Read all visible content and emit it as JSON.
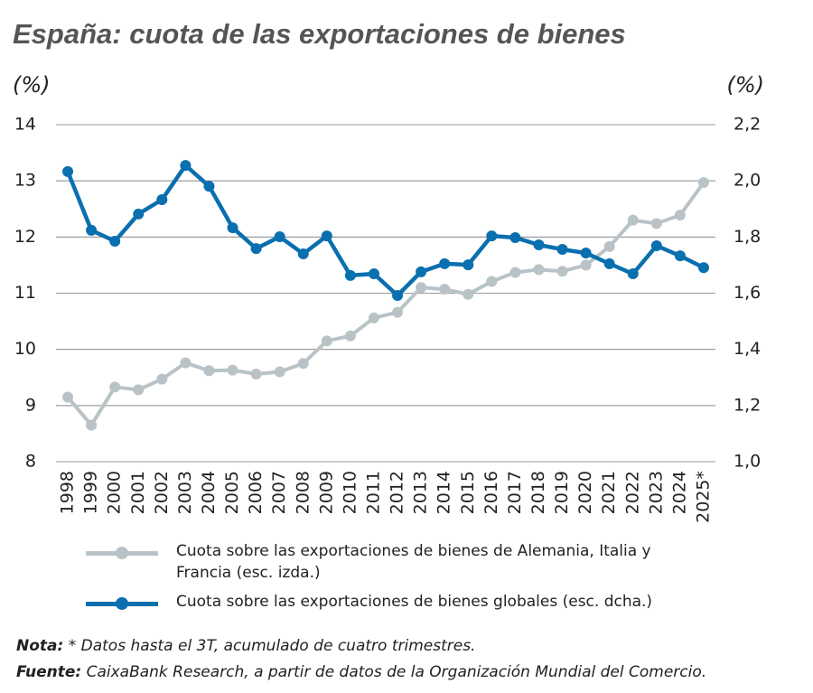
{
  "chart_data": {
    "type": "line",
    "title": "España: cuota de las exportaciones de bienes",
    "ylabel": "(%)",
    "y2label": "(%)",
    "categories": [
      "1998",
      "1999",
      "2000",
      "2001",
      "2002",
      "2003",
      "2004",
      "2005",
      "2006",
      "2007",
      "2008",
      "2009",
      "2010",
      "2011",
      "2012",
      "2013",
      "2014",
      "2015",
      "2016",
      "2017",
      "2018",
      "2019",
      "2020",
      "2021",
      "2022",
      "2023",
      "2024",
      "2025*"
    ],
    "series": [
      {
        "name": "Cuota sobre las exportaciones de bienes de Alemania, Italia y Francia (esc. izda.)",
        "color": "#b9c3c7",
        "axis": "y",
        "values": [
          9.15,
          8.65,
          9.33,
          9.28,
          9.47,
          9.76,
          9.62,
          9.63,
          9.56,
          9.6,
          9.75,
          10.15,
          10.24,
          10.56,
          10.66,
          11.1,
          11.07,
          10.98,
          11.21,
          11.37,
          11.42,
          11.39,
          11.5,
          11.83,
          12.3,
          12.24,
          12.39,
          12.97
        ]
      },
      {
        "name": "Cuota sobre las exportaciones de bienes globales (esc. dcha.)",
        "color": "#0a6fae",
        "axis": "y2",
        "values": [
          2.033,
          1.824,
          1.785,
          1.882,
          1.933,
          2.055,
          1.981,
          1.833,
          1.759,
          1.801,
          1.74,
          1.804,
          1.663,
          1.669,
          1.592,
          1.676,
          1.705,
          1.701,
          1.804,
          1.798,
          1.772,
          1.756,
          1.743,
          1.705,
          1.669,
          1.769,
          1.733,
          1.691
        ]
      }
    ],
    "ylim": [
      8,
      14
    ],
    "yticks": [
      8,
      9,
      10,
      11,
      12,
      13,
      14
    ],
    "y2lim": [
      1.0,
      2.2
    ],
    "y2ticks": [
      {
        "value": 1.0,
        "label": "1,0"
      },
      {
        "value": 1.2,
        "label": "1,2"
      },
      {
        "value": 1.4,
        "label": "1,4"
      },
      {
        "value": 1.6,
        "label": "1,6"
      },
      {
        "value": 1.8,
        "label": "1,8"
      },
      {
        "value": 2.0,
        "label": "2,0"
      },
      {
        "value": 2.2,
        "label": "2,2"
      }
    ],
    "grid": true,
    "notes": [
      {
        "label": "Nota:",
        "text": " * Datos hasta el 3T, acumulado de cuatro trimestres."
      },
      {
        "label": "Fuente:",
        "text": " CaixaBank Research, a partir de datos de la Organización Mundial del Comercio."
      }
    ]
  }
}
